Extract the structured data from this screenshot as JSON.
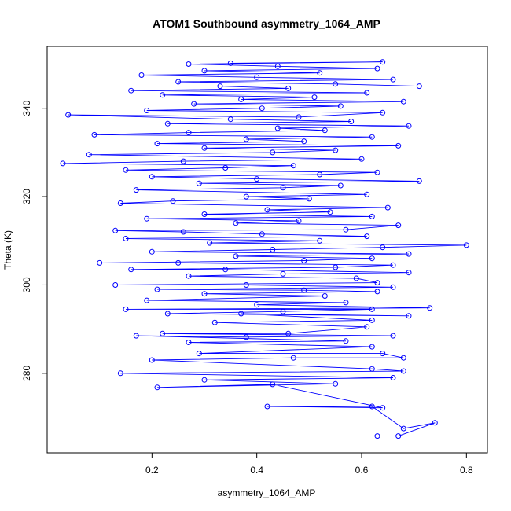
{
  "chart_data": {
    "type": "line",
    "title": "ATOM1 Southbound asymmetry_1064_AMP",
    "xlabel": "asymmetry_1064_AMP",
    "ylabel": "Theta (K)",
    "xlim": [
      0.0,
      0.84
    ],
    "ylim": [
      262,
      354
    ],
    "x_ticks": [
      0.2,
      0.4,
      0.6,
      0.8
    ],
    "y_ticks": [
      280,
      300,
      320,
      340
    ],
    "grid": false,
    "legend": "none",
    "series": [
      {
        "color": "#0000ff",
        "marker": "open-circle",
        "line": true,
        "points": [
          [
            0.63,
            265.8
          ],
          [
            0.67,
            265.8
          ],
          [
            0.74,
            268.8
          ],
          [
            0.68,
            267.5
          ],
          [
            0.62,
            272.5
          ],
          [
            0.42,
            272.5
          ],
          [
            0.64,
            272.2
          ],
          [
            0.43,
            277.5
          ],
          [
            0.21,
            276.8
          ],
          [
            0.55,
            277.6
          ],
          [
            0.3,
            278.5
          ],
          [
            0.66,
            279.0
          ],
          [
            0.14,
            280.0
          ],
          [
            0.68,
            280.5
          ],
          [
            0.62,
            281.0
          ],
          [
            0.2,
            283.0
          ],
          [
            0.47,
            283.5
          ],
          [
            0.68,
            283.5
          ],
          [
            0.64,
            284.5
          ],
          [
            0.29,
            284.5
          ],
          [
            0.62,
            286.0
          ],
          [
            0.27,
            287.0
          ],
          [
            0.57,
            287.3
          ],
          [
            0.17,
            288.5
          ],
          [
            0.38,
            288.2
          ],
          [
            0.66,
            288.5
          ],
          [
            0.22,
            289.0
          ],
          [
            0.46,
            289.0
          ],
          [
            0.61,
            290.5
          ],
          [
            0.32,
            291.5
          ],
          [
            0.62,
            292.0
          ],
          [
            0.37,
            293.5
          ],
          [
            0.69,
            293.0
          ],
          [
            0.23,
            293.5
          ],
          [
            0.45,
            294.0
          ],
          [
            0.62,
            294.5
          ],
          [
            0.15,
            294.5
          ],
          [
            0.73,
            294.8
          ],
          [
            0.4,
            295.5
          ],
          [
            0.57,
            296.0
          ],
          [
            0.19,
            296.5
          ],
          [
            0.53,
            297.5
          ],
          [
            0.3,
            298.0
          ],
          [
            0.63,
            298.5
          ],
          [
            0.49,
            298.8
          ],
          [
            0.21,
            299.0
          ],
          [
            0.66,
            299.5
          ],
          [
            0.38,
            300.0
          ],
          [
            0.13,
            300.0
          ],
          [
            0.63,
            300.5
          ],
          [
            0.59,
            301.5
          ],
          [
            0.27,
            302.0
          ],
          [
            0.45,
            302.5
          ],
          [
            0.69,
            302.8
          ],
          [
            0.34,
            303.5
          ],
          [
            0.16,
            303.5
          ],
          [
            0.55,
            304.0
          ],
          [
            0.66,
            304.5
          ],
          [
            0.25,
            305.0
          ],
          [
            0.1,
            305.0
          ],
          [
            0.49,
            305.5
          ],
          [
            0.62,
            306.0
          ],
          [
            0.36,
            306.5
          ],
          [
            0.69,
            307.0
          ],
          [
            0.2,
            307.5
          ],
          [
            0.43,
            308.0
          ],
          [
            0.64,
            308.5
          ],
          [
            0.8,
            309.0
          ],
          [
            0.31,
            309.5
          ],
          [
            0.52,
            310.0
          ],
          [
            0.15,
            310.5
          ],
          [
            0.61,
            311.0
          ],
          [
            0.41,
            311.5
          ],
          [
            0.26,
            312.0
          ],
          [
            0.13,
            312.3
          ],
          [
            0.57,
            312.5
          ],
          [
            0.67,
            313.5
          ],
          [
            0.36,
            314.0
          ],
          [
            0.48,
            314.5
          ],
          [
            0.19,
            315.0
          ],
          [
            0.62,
            315.5
          ],
          [
            0.3,
            316.0
          ],
          [
            0.54,
            316.5
          ],
          [
            0.42,
            317.0
          ],
          [
            0.65,
            317.5
          ],
          [
            0.14,
            318.5
          ],
          [
            0.24,
            319.0
          ],
          [
            0.5,
            319.5
          ],
          [
            0.38,
            320.0
          ],
          [
            0.61,
            320.5
          ],
          [
            0.17,
            321.5
          ],
          [
            0.45,
            322.0
          ],
          [
            0.56,
            322.5
          ],
          [
            0.29,
            323.0
          ],
          [
            0.71,
            323.5
          ],
          [
            0.4,
            324.0
          ],
          [
            0.2,
            324.5
          ],
          [
            0.52,
            325.0
          ],
          [
            0.63,
            325.5
          ],
          [
            0.15,
            326.0
          ],
          [
            0.34,
            326.5
          ],
          [
            0.47,
            327.0
          ],
          [
            0.03,
            327.5
          ],
          [
            0.26,
            328.0
          ],
          [
            0.6,
            328.5
          ],
          [
            0.08,
            329.5
          ],
          [
            0.43,
            330.0
          ],
          [
            0.55,
            330.5
          ],
          [
            0.3,
            331.0
          ],
          [
            0.67,
            331.5
          ],
          [
            0.21,
            332.0
          ],
          [
            0.49,
            332.5
          ],
          [
            0.38,
            333.0
          ],
          [
            0.62,
            333.5
          ],
          [
            0.09,
            334.0
          ],
          [
            0.27,
            334.5
          ],
          [
            0.53,
            335.0
          ],
          [
            0.44,
            335.5
          ],
          [
            0.69,
            336.0
          ],
          [
            0.23,
            336.5
          ],
          [
            0.58,
            337.0
          ],
          [
            0.35,
            337.5
          ],
          [
            0.04,
            338.5
          ],
          [
            0.48,
            338.0
          ],
          [
            0.64,
            339.0
          ],
          [
            0.19,
            339.5
          ],
          [
            0.41,
            340.0
          ],
          [
            0.56,
            340.5
          ],
          [
            0.28,
            341.0
          ],
          [
            0.68,
            341.5
          ],
          [
            0.37,
            342.0
          ],
          [
            0.51,
            342.5
          ],
          [
            0.22,
            343.0
          ],
          [
            0.61,
            343.5
          ],
          [
            0.16,
            344.0
          ],
          [
            0.46,
            344.5
          ],
          [
            0.33,
            345.0
          ],
          [
            0.71,
            345.0
          ],
          [
            0.55,
            345.5
          ],
          [
            0.25,
            346.0
          ],
          [
            0.66,
            346.5
          ],
          [
            0.4,
            347.0
          ],
          [
            0.18,
            347.5
          ],
          [
            0.52,
            348.0
          ],
          [
            0.3,
            348.5
          ],
          [
            0.63,
            349.0
          ],
          [
            0.44,
            349.5
          ],
          [
            0.27,
            350.0
          ],
          [
            0.64,
            350.5
          ],
          [
            0.35,
            350.2
          ]
        ]
      }
    ]
  }
}
